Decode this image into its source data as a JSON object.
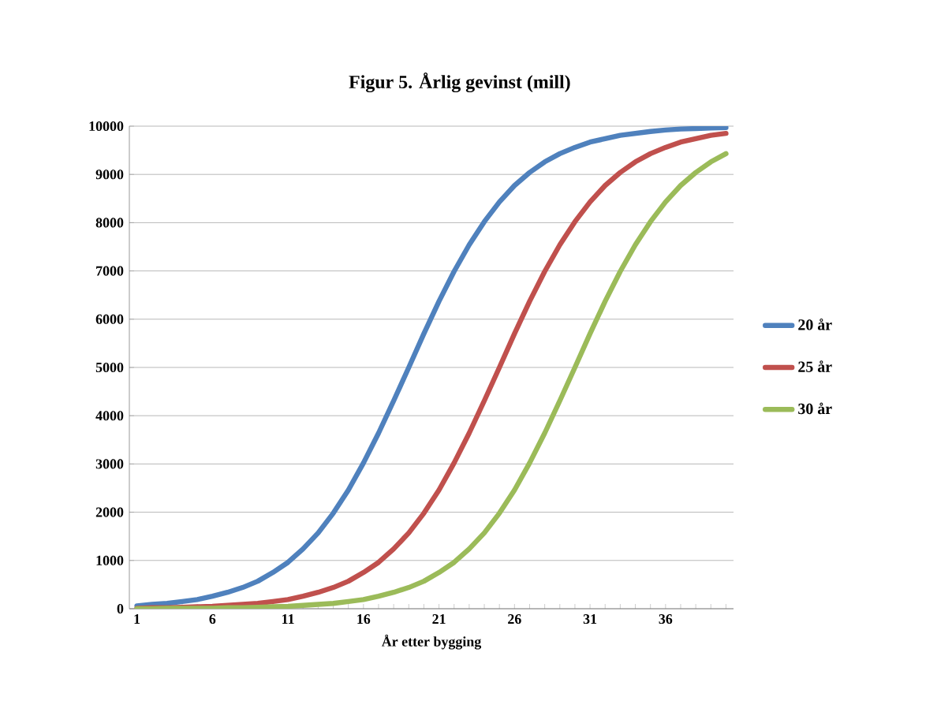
{
  "chart_data": {
    "type": "line",
    "title": "Figur 5.  Årlig gevinst (mill)",
    "xlabel": "År etter bygging",
    "categories": [
      "1",
      null,
      null,
      null,
      null,
      "6",
      null,
      null,
      null,
      null,
      "11",
      null,
      null,
      null,
      null,
      "16",
      null,
      null,
      null,
      null,
      "21",
      null,
      null,
      null,
      null,
      "26",
      null,
      null,
      null,
      null,
      "31",
      null,
      null,
      null,
      null,
      "36",
      null,
      null,
      null,
      null
    ],
    "series": [
      {
        "name": "20 år",
        "color": "#4f81bd",
        "values": [
          60,
          90,
          110,
          150,
          190,
          260,
          340,
          440,
          570,
          750,
          960,
          1240,
          1570,
          1980,
          2460,
          3020,
          3640,
          4310,
          5000,
          5700,
          6370,
          6990,
          7540,
          8020,
          8430,
          8770,
          9040,
          9260,
          9430,
          9560,
          9670,
          9740,
          9810,
          9850,
          9890,
          9920,
          9940,
          9950,
          9960,
          9970
        ]
      },
      {
        "name": "25 år",
        "color": "#c0504d",
        "values": [
          10,
          20,
          20,
          30,
          40,
          50,
          70,
          90,
          110,
          150,
          190,
          260,
          340,
          440,
          570,
          750,
          960,
          1240,
          1570,
          1980,
          2460,
          3020,
          3640,
          4310,
          5000,
          5700,
          6370,
          6990,
          7540,
          8020,
          8430,
          8770,
          9040,
          9260,
          9430,
          9560,
          9670,
          9740,
          9810,
          9850
        ]
      },
      {
        "name": "30 år",
        "color": "#9bbb59",
        "values": [
          0,
          0,
          10,
          10,
          10,
          10,
          20,
          20,
          30,
          40,
          50,
          70,
          90,
          110,
          150,
          190,
          260,
          340,
          440,
          570,
          750,
          960,
          1240,
          1570,
          1980,
          2460,
          3020,
          3640,
          4310,
          5000,
          5700,
          6370,
          6990,
          7540,
          8020,
          8430,
          8770,
          9040,
          9260,
          9430
        ]
      }
    ],
    "ylim": [
      0,
      10000
    ],
    "yticks": [
      0,
      1000,
      2000,
      3000,
      4000,
      5000,
      6000,
      7000,
      8000,
      9000,
      10000
    ],
    "grid": "y",
    "legend": "right",
    "line_style": "solid",
    "marker": "none"
  }
}
